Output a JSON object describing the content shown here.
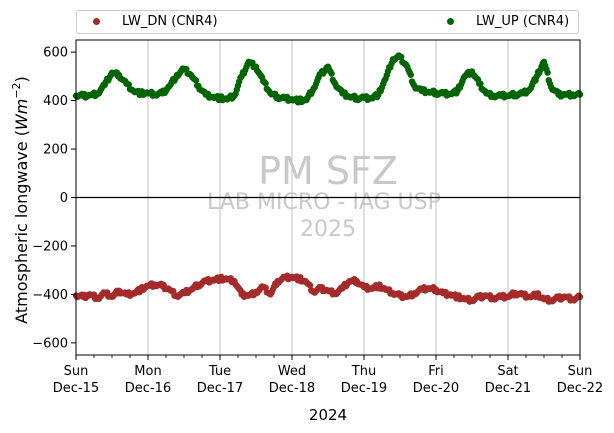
{
  "colors": {
    "lw_dn": "#a52a2a",
    "lw_up": "#006400",
    "watermark": "#c8c8c8",
    "grid": "#b0b0b0"
  },
  "watermark": {
    "line1": "PM SFZ",
    "line2": "LAB MICRO - IAG USP",
    "line3": "2025"
  },
  "chart_data": {
    "type": "scatter",
    "ylabel_prefix": "Atmospheric longwave (",
    "ylabel_unit": "Wm",
    "ylabel_exp": "−2",
    "ylabel_suffix": ")",
    "xlabel": "2024",
    "ylim": [
      -650,
      650
    ],
    "yticks": [
      -600,
      -400,
      -200,
      0,
      200,
      400,
      600
    ],
    "xlim_days": [
      0,
      7
    ],
    "xticks": [
      {
        "day": "Sun",
        "date": "Dec-15"
      },
      {
        "day": "Mon",
        "date": "Dec-16"
      },
      {
        "day": "Tue",
        "date": "Dec-17"
      },
      {
        "day": "Wed",
        "date": "Dec-18"
      },
      {
        "day": "Thu",
        "date": "Dec-19"
      },
      {
        "day": "Fri",
        "date": "Dec-20"
      },
      {
        "day": "Sat",
        "date": "Dec-21"
      },
      {
        "day": "Sun",
        "date": "Dec-22"
      }
    ],
    "grid": "vertical-major",
    "legend_placement": "top",
    "series": [
      {
        "name": "LW_DN (CNR4)",
        "x": [
          0.0,
          0.1,
          0.2,
          0.3,
          0.4,
          0.5,
          0.6,
          0.7,
          0.8,
          0.9,
          1.0,
          1.1,
          1.2,
          1.3,
          1.4,
          1.5,
          1.6,
          1.7,
          1.8,
          1.9,
          2.0,
          2.1,
          2.2,
          2.3,
          2.4,
          2.5,
          2.6,
          2.7,
          2.8,
          2.9,
          3.0,
          3.1,
          3.2,
          3.3,
          3.4,
          3.5,
          3.6,
          3.7,
          3.8,
          3.9,
          4.0,
          4.1,
          4.2,
          4.3,
          4.4,
          4.5,
          4.6,
          4.7,
          4.8,
          4.9,
          5.0,
          5.1,
          5.2,
          5.3,
          5.4,
          5.5,
          5.6,
          5.7,
          5.8,
          5.9,
          6.0,
          6.1,
          6.2,
          6.3,
          6.4,
          6.5,
          6.6,
          6.7,
          6.8,
          6.9,
          7.0
        ],
        "y": [
          -405,
          -410,
          -400,
          -415,
          -395,
          -410,
          -385,
          -400,
          -395,
          -380,
          -365,
          -360,
          -365,
          -380,
          -405,
          -395,
          -380,
          -360,
          -345,
          -340,
          -335,
          -338,
          -345,
          -400,
          -405,
          -390,
          -370,
          -400,
          -345,
          -330,
          -328,
          -335,
          -350,
          -390,
          -375,
          -385,
          -395,
          -375,
          -345,
          -345,
          -370,
          -375,
          -365,
          -380,
          -395,
          -405,
          -410,
          -395,
          -380,
          -375,
          -380,
          -395,
          -400,
          -410,
          -420,
          -425,
          -410,
          -405,
          -415,
          -410,
          -410,
          -395,
          -400,
          -410,
          -400,
          -420,
          -425,
          -415,
          -410,
          -420,
          -410
        ]
      },
      {
        "name": "LW_UP (CNR4)",
        "x": [
          0.0,
          0.1,
          0.2,
          0.3,
          0.4,
          0.5,
          0.6,
          0.7,
          0.8,
          0.9,
          1.0,
          1.1,
          1.2,
          1.3,
          1.4,
          1.5,
          1.6,
          1.7,
          1.8,
          1.9,
          2.0,
          2.1,
          2.2,
          2.3,
          2.4,
          2.5,
          2.6,
          2.7,
          2.8,
          2.9,
          3.0,
          3.1,
          3.2,
          3.3,
          3.4,
          3.5,
          3.6,
          3.7,
          3.8,
          3.9,
          4.0,
          4.1,
          4.2,
          4.3,
          4.4,
          4.5,
          4.6,
          4.7,
          4.8,
          4.9,
          5.0,
          5.1,
          5.2,
          5.3,
          5.4,
          5.5,
          5.6,
          5.7,
          5.8,
          5.9,
          6.0,
          6.1,
          6.2,
          6.3,
          6.4,
          6.5,
          6.6,
          6.7,
          6.8,
          6.9,
          7.0
        ],
        "y": [
          420,
          420,
          422,
          430,
          465,
          515,
          505,
          470,
          440,
          430,
          430,
          425,
          430,
          460,
          505,
          530,
          505,
          460,
          425,
          415,
          410,
          405,
          420,
          500,
          560,
          540,
          480,
          430,
          415,
          410,
          405,
          400,
          402,
          450,
          510,
          540,
          470,
          430,
          415,
          410,
          412,
          410,
          425,
          490,
          570,
          580,
          540,
          460,
          440,
          435,
          432,
          430,
          428,
          440,
          500,
          520,
          470,
          430,
          420,
          420,
          420,
          425,
          430,
          445,
          500,
          560,
          455,
          425,
          425,
          425,
          425
        ]
      }
    ]
  }
}
